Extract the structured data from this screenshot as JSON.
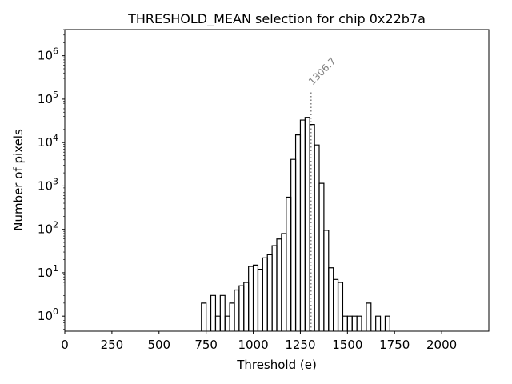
{
  "chart_data": {
    "type": "histogram",
    "title": "THRESHOLD_MEAN selection for chip 0x22b7a",
    "xlabel": "Threshold (e)",
    "ylabel": "Number of pixels",
    "xlim": [
      0,
      2250
    ],
    "ylim": [
      0.45,
      4000000
    ],
    "yscale": "log",
    "xticks": [
      0,
      250,
      500,
      750,
      1000,
      1250,
      1500,
      1750,
      2000
    ],
    "xtick_labels": [
      "0",
      "250",
      "500",
      "750",
      "1000",
      "1250",
      "1500",
      "1750",
      "2000"
    ],
    "yticks": [
      1,
      10,
      100,
      1000,
      10000,
      100000,
      1000000
    ],
    "ytick_labels": [
      {
        "base": "10",
        "exp": "0"
      },
      {
        "base": "10",
        "exp": "1"
      },
      {
        "base": "10",
        "exp": "2"
      },
      {
        "base": "10",
        "exp": "3"
      },
      {
        "base": "10",
        "exp": "4"
      },
      {
        "base": "10",
        "exp": "5"
      },
      {
        "base": "10",
        "exp": "6"
      }
    ],
    "bin_width": 25,
    "bin_starts": [
      725,
      750,
      775,
      800,
      825,
      850,
      875,
      900,
      925,
      950,
      975,
      1000,
      1025,
      1050,
      1075,
      1100,
      1125,
      1150,
      1175,
      1200,
      1225,
      1250,
      1275,
      1300,
      1325,
      1350,
      1375,
      1400,
      1425,
      1450,
      1475,
      1500,
      1525,
      1550,
      1575,
      1600,
      1625,
      1650,
      1675,
      1700,
      1725
    ],
    "counts": [
      2,
      0,
      3,
      1,
      3,
      1,
      2,
      4,
      5,
      6,
      14,
      15,
      12,
      22,
      26,
      42,
      60,
      80,
      550,
      4100,
      15000,
      33000,
      38000,
      26000,
      8800,
      1150,
      95,
      13,
      7,
      6,
      1,
      1,
      1,
      1,
      0,
      2,
      0,
      1,
      0,
      1,
      0
    ],
    "vline": {
      "x": 1306.7,
      "label": "1306.7",
      "color": "#808080",
      "style": "dotted",
      "ymax": 160000
    },
    "colors": {
      "step": "#000000",
      "axes": "#000000",
      "vline": "#808080"
    }
  }
}
